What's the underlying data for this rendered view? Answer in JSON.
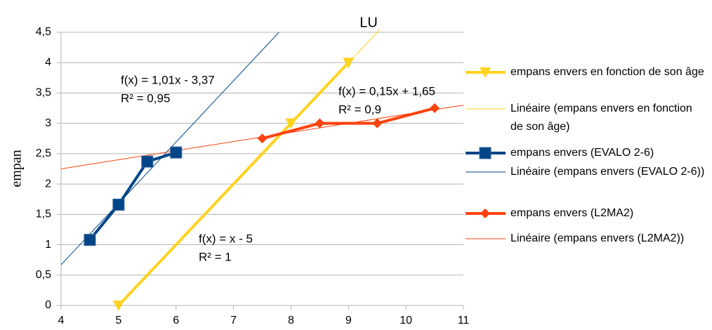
{
  "chart_data": {
    "type": "line",
    "title": "LU",
    "ylabel": "empan",
    "xlim": [
      4,
      11
    ],
    "xticks": [
      4,
      5,
      6,
      7,
      8,
      9,
      10,
      11
    ],
    "ylim": [
      0,
      4.5
    ],
    "yticks": [
      0,
      {
        "value": 0.5,
        "label": "0,5"
      },
      1,
      {
        "value": 1.5,
        "label": "1,5"
      },
      2,
      {
        "value": 2.5,
        "label": "2,5"
      },
      3,
      {
        "value": 3.5,
        "label": "3,5"
      },
      4,
      {
        "value": 4.5,
        "label": "4,5"
      }
    ],
    "grid": true,
    "legend": "right",
    "series": [
      {
        "name": "empans envers en fonction de son âge",
        "color": "#ffd320",
        "marker": "triangle-down",
        "x": [
          5,
          8,
          9
        ],
        "values": [
          0,
          3,
          4
        ]
      },
      {
        "name": "Linéaire (empans envers en fonction de son âge)",
        "color": "#ffd320",
        "trendline": true,
        "x": [
          5,
          9.55
        ],
        "values": [
          0,
          4.55
        ]
      },
      {
        "name": "empans envers (EVALO 2-6)",
        "color": "#004586",
        "marker": "square",
        "x": [
          4.5,
          5,
          5.5,
          6
        ],
        "values": [
          1.08,
          1.66,
          2.37,
          2.52
        ]
      },
      {
        "name": "Linéaire (empans envers (EVALO 2-6))",
        "color": "#004586",
        "trendline": true,
        "x": [
          4,
          7.79
        ],
        "values": [
          0.67,
          4.5
        ]
      },
      {
        "name": "empans envers (L2MA2)",
        "color": "#ff420e",
        "marker": "diamond",
        "x": [
          7.5,
          8.5,
          9.5,
          10.5
        ],
        "values": [
          2.75,
          3,
          3,
          3.25
        ]
      },
      {
        "name": "Linéaire (empans envers (L2MA2))",
        "color": "#ff420e",
        "trendline": true,
        "x": [
          4,
          11
        ],
        "values": [
          2.25,
          3.3
        ]
      }
    ],
    "annotations": [
      "f(x) = 1,01x - 3,37",
      "R² = 0,95",
      "f(x) = 0,15x + 1,65",
      "R² = 0,9",
      "f(x) = x - 5",
      "R² = 1"
    ]
  }
}
